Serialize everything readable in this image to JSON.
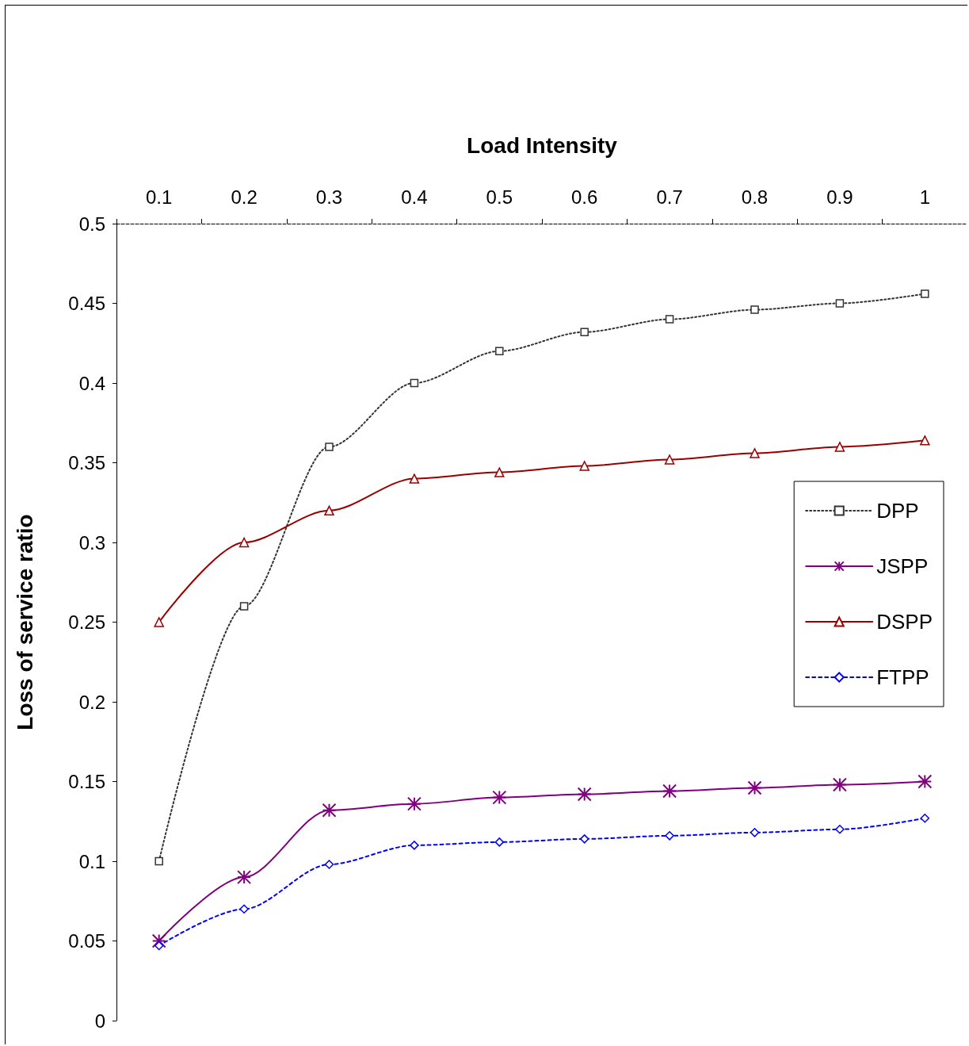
{
  "chart_data": {
    "type": "line",
    "xlabel": "Load Intensity",
    "ylabel": "Loss of service ratio",
    "categories": [
      "0.1",
      "0.2",
      "0.3",
      "0.4",
      "0.5",
      "0.6",
      "0.7",
      "0.8",
      "0.9",
      "1"
    ],
    "series": [
      {
        "name": "DPP",
        "color": "#333333",
        "marker": "square",
        "line_style": "dotted",
        "values": [
          0.1,
          0.26,
          0.36,
          0.4,
          0.42,
          0.432,
          0.44,
          0.446,
          0.45,
          0.456
        ]
      },
      {
        "name": "JSPP",
        "color": "#800080",
        "marker": "cross",
        "line_style": "solid",
        "values": [
          0.05,
          0.09,
          0.132,
          0.136,
          0.14,
          0.142,
          0.144,
          0.146,
          0.148,
          0.15
        ]
      },
      {
        "name": "DSPP",
        "color": "#990000",
        "marker": "triangle",
        "line_style": "solid",
        "values": [
          0.25,
          0.3,
          0.32,
          0.34,
          0.344,
          0.348,
          0.352,
          0.356,
          0.36,
          0.364
        ]
      },
      {
        "name": "FTPP",
        "color": "#0000ff",
        "marker": "diamond",
        "line_style": "dashed",
        "values": [
          0.047,
          0.07,
          0.098,
          0.11,
          0.112,
          0.114,
          0.116,
          0.118,
          0.12,
          0.127
        ]
      }
    ],
    "ylim": [
      0,
      0.5
    ],
    "yticks": [
      0,
      0.05,
      0.1,
      0.15,
      0.2,
      0.25,
      0.3,
      0.35,
      0.4,
      0.45,
      0.5
    ],
    "grid": false,
    "legend": "right"
  }
}
